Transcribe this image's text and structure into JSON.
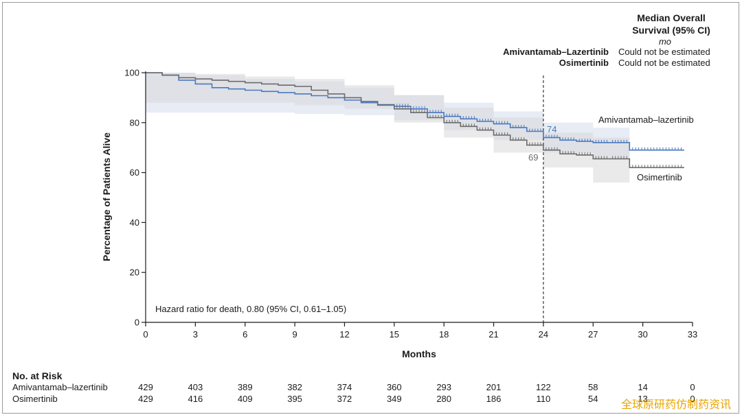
{
  "chart_data": {
    "type": "line",
    "subtype": "kaplan-meier",
    "xlabel": "Months",
    "ylabel": "Percentage of Patients Alive",
    "xlim": [
      0,
      33
    ],
    "ylim": [
      0,
      100
    ],
    "x_ticks": [
      0,
      3,
      6,
      9,
      12,
      15,
      18,
      21,
      24,
      27,
      30,
      33
    ],
    "y_ticks": [
      0,
      20,
      40,
      60,
      80,
      100
    ],
    "grid": false,
    "reference_line": {
      "x": 24,
      "style": "dashed"
    },
    "series": [
      {
        "name": "Amivantamab–lazertinib",
        "color": "#4a78c0",
        "end_label": "74",
        "points": [
          [
            0,
            100
          ],
          [
            1,
            99
          ],
          [
            2,
            97
          ],
          [
            3,
            95.5
          ],
          [
            4,
            94
          ],
          [
            5,
            93.5
          ],
          [
            6,
            93
          ],
          [
            7,
            92.5
          ],
          [
            8,
            92
          ],
          [
            9,
            91.5
          ],
          [
            10,
            90.8
          ],
          [
            11,
            90
          ],
          [
            12,
            89
          ],
          [
            13,
            88
          ],
          [
            14,
            87.2
          ],
          [
            15,
            86.5
          ],
          [
            16,
            85.5
          ],
          [
            17,
            84
          ],
          [
            18,
            82.5
          ],
          [
            19,
            81.5
          ],
          [
            20,
            80.5
          ],
          [
            21,
            79.5
          ],
          [
            22,
            78
          ],
          [
            23,
            76.5
          ],
          [
            24,
            74
          ],
          [
            25,
            73
          ],
          [
            26,
            72.5
          ],
          [
            27,
            72
          ],
          [
            28,
            72
          ],
          [
            29.2,
            72
          ],
          [
            29.2,
            69
          ],
          [
            32.5,
            69
          ]
        ],
        "ci_upper": [
          [
            0,
            100
          ],
          [
            3,
            99
          ],
          [
            6,
            97.5
          ],
          [
            9,
            96.5
          ],
          [
            12,
            94
          ],
          [
            15,
            91
          ],
          [
            18,
            88
          ],
          [
            21,
            84.5
          ],
          [
            24,
            80
          ],
          [
            27,
            78
          ],
          [
            29.2,
            78
          ]
        ],
        "ci_lower": [
          [
            0,
            84
          ],
          [
            3,
            84
          ],
          [
            6,
            84
          ],
          [
            9,
            83.5
          ],
          [
            12,
            83
          ],
          [
            15,
            81
          ],
          [
            18,
            77
          ],
          [
            21,
            73
          ],
          [
            24,
            68
          ],
          [
            27,
            66
          ],
          [
            29.2,
            66
          ]
        ]
      },
      {
        "name": "Osimertinib",
        "color": "#6b6b6b",
        "end_label": "69",
        "points": [
          [
            0,
            100
          ],
          [
            1,
            99
          ],
          [
            2,
            98
          ],
          [
            3,
            97.5
          ],
          [
            4,
            97
          ],
          [
            5,
            96.5
          ],
          [
            6,
            96
          ],
          [
            7,
            95.5
          ],
          [
            8,
            95
          ],
          [
            9,
            94.5
          ],
          [
            10,
            93
          ],
          [
            11,
            91.5
          ],
          [
            12,
            90
          ],
          [
            13,
            88.5
          ],
          [
            14,
            87
          ],
          [
            15,
            85.5
          ],
          [
            16,
            84
          ],
          [
            17,
            82
          ],
          [
            18,
            80
          ],
          [
            19,
            78.5
          ],
          [
            20,
            77
          ],
          [
            21,
            75
          ],
          [
            22,
            73
          ],
          [
            23,
            71
          ],
          [
            24,
            69
          ],
          [
            25,
            67.5
          ],
          [
            26,
            67
          ],
          [
            27,
            65.5
          ],
          [
            28,
            65.5
          ],
          [
            29.2,
            65.5
          ],
          [
            29.2,
            62
          ],
          [
            32.5,
            62
          ]
        ],
        "ci_upper": [
          [
            0,
            100
          ],
          [
            3,
            99.5
          ],
          [
            6,
            98.5
          ],
          [
            9,
            97.5
          ],
          [
            12,
            95
          ],
          [
            15,
            91
          ],
          [
            18,
            86
          ],
          [
            21,
            82
          ],
          [
            24,
            76
          ],
          [
            27,
            74
          ],
          [
            29.2,
            74
          ]
        ],
        "ci_lower": [
          [
            0,
            88
          ],
          [
            3,
            88
          ],
          [
            6,
            88
          ],
          [
            9,
            87
          ],
          [
            12,
            85.5
          ],
          [
            15,
            80
          ],
          [
            18,
            74
          ],
          [
            21,
            68
          ],
          [
            24,
            62
          ],
          [
            27,
            56
          ],
          [
            29.2,
            56
          ]
        ]
      }
    ],
    "annotations": {
      "hazard_ratio": "Hazard ratio for death, 0.80 (95% CI, 0.61–1.05)"
    },
    "median_box": {
      "header_line1": "Median Overall",
      "header_line2": "Survival (95% CI)",
      "unit": "mo",
      "rows": [
        {
          "name": "Amivantamab–Lazertinib",
          "value": "Could not be estimated"
        },
        {
          "name": "Osimertinib",
          "value": "Could not be estimated"
        }
      ]
    },
    "risk_table": {
      "title": "No. at Risk",
      "rows": [
        {
          "name": "Amivantamab–lazertinib",
          "values": [
            "429",
            "403",
            "389",
            "382",
            "374",
            "360",
            "293",
            "201",
            "122",
            "58",
            "14",
            "0"
          ]
        },
        {
          "name": "Osimertinib",
          "values": [
            "429",
            "416",
            "409",
            "395",
            "372",
            "349",
            "280",
            "186",
            "110",
            "54",
            "13",
            "0"
          ]
        }
      ]
    }
  },
  "watermark": "全球原研药仿制药资讯"
}
